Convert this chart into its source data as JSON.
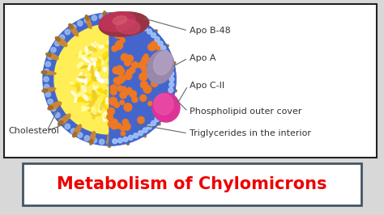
{
  "bg_color": "#d8d8d8",
  "diagram_bg": "#ffffff",
  "title_text": "Metabolism of Chylomicrons",
  "title_color": "#ee0000",
  "title_fontsize": 15,
  "title_bg": "#ffffff",
  "title_border": "#445566",
  "labels": {
    "apo_b48": "Apo B-48",
    "apo_a": "Apo A",
    "apo_cii": "Apo C-II",
    "phospholipid": "Phospholipid outer cover",
    "triglycerides": "Triglycerides in the interior",
    "cholesterol": "Cholesterol"
  },
  "label_fontsize": 8,
  "colors": {
    "outer_blue": "#4466cc",
    "outer_blue_light": "#5577dd",
    "yellow_interior": "#ffee55",
    "yellow_grain": "#eecc22",
    "yellow_grain2": "#ffffff",
    "cholesterol_tan": "#cc8833",
    "cholesterol_dark": "#996622",
    "apo_b48_red": "#bb4455",
    "apo_b48_dark": "#882233",
    "apo_a_lavender": "#9988bb",
    "apo_a_dark": "#776699",
    "apo_cii_pink": "#dd44aa",
    "apo_cii_dark": "#bb2288",
    "orange_dot": "#ee7722",
    "blue_dot": "#aabbee",
    "dot_white": "#ddeeff"
  }
}
